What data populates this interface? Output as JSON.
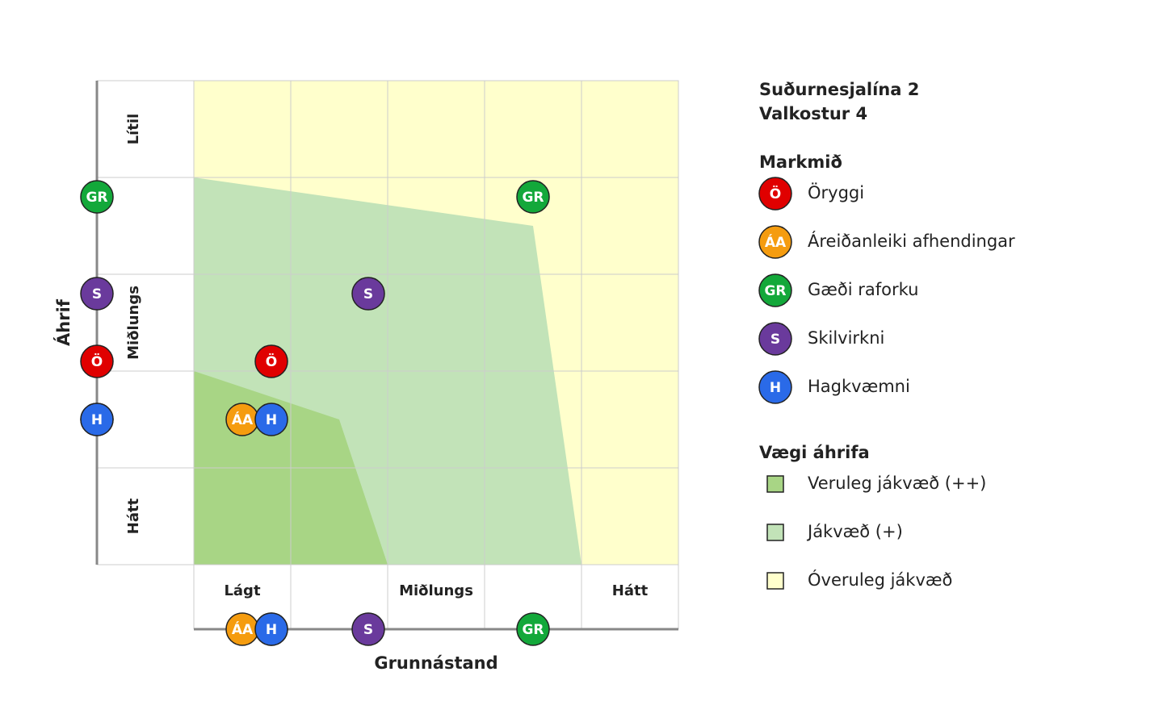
{
  "chart_data": {
    "type": "scatter",
    "title": "Suðurnesjalína 2",
    "subtitle": "Valkostur 4",
    "x_label": "Grunnástand",
    "y_label": "Áhrif",
    "xlim": [
      0,
      5
    ],
    "ylim": [
      0,
      5
    ],
    "xticks": [
      {
        "value": 0.5,
        "label": "Lágt"
      },
      {
        "value": 2.5,
        "label": "Miðlungs"
      },
      {
        "value": 4.5,
        "label": "Hátt"
      }
    ],
    "yticks": [
      {
        "value": 0.5,
        "label": "Hátt"
      },
      {
        "value": 2.5,
        "label": "Miðlungs"
      },
      {
        "value": 4.5,
        "label": "Lítil"
      }
    ],
    "legend_title": "Markmið",
    "series": [
      {
        "name": "Öryggi",
        "label": "Ö",
        "color": "#e00000",
        "x": [
          0.8
        ],
        "values": [
          2.1
        ]
      },
      {
        "name": "Áreiðanleiki afhendingar",
        "label": "ÁA",
        "color": "#f59c0f",
        "x": [
          0.5
        ],
        "values": [
          1.5
        ]
      },
      {
        "name": "Gæði raforku",
        "label": "GR",
        "color": "#13a83a",
        "x": [
          3.5
        ],
        "values": [
          3.8
        ]
      },
      {
        "name": "Skilvirkni",
        "label": "S",
        "color": "#6a3a9c",
        "x": [
          1.8
        ],
        "values": [
          2.8
        ]
      },
      {
        "name": "Hagkvæmni",
        "label": "H",
        "color": "#2a6ae8",
        "x": [
          0.8
        ],
        "values": [
          1.5
        ]
      }
    ],
    "zones_title": "Vægi áhrifa",
    "zones": [
      {
        "name": "Veruleg jákvæð (++)",
        "color": "#a8d585"
      },
      {
        "name": "Jákvæð (+)",
        "color": "#c2e3b8"
      },
      {
        "name": "Óveruleg jákvæð",
        "color": "#ffffcc"
      }
    ]
  }
}
